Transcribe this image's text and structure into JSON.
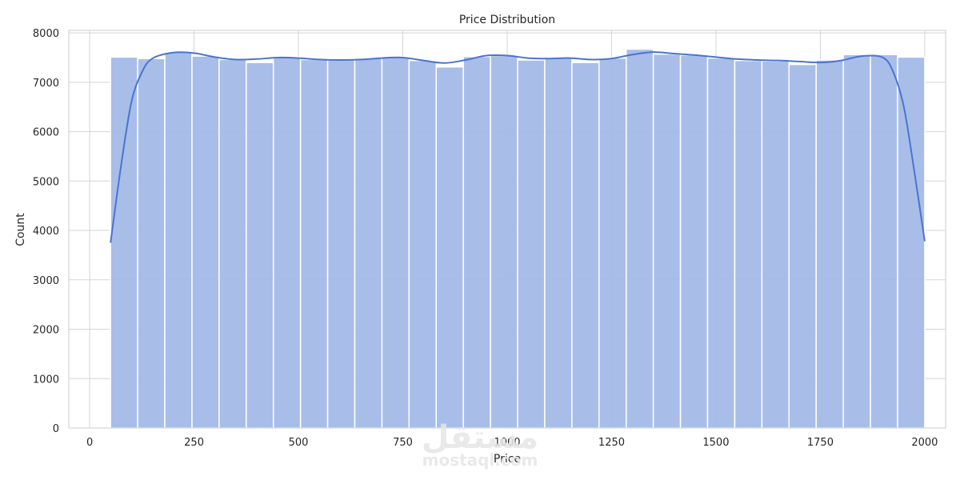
{
  "chart_data": {
    "type": "bar",
    "subtype": "histogram-with-kde",
    "title": "Price Distribution",
    "xlabel": "Price",
    "ylabel": "Count",
    "xlim": [
      -50,
      2050
    ],
    "ylim": [
      0,
      8050
    ],
    "x_ticks": [
      0,
      250,
      500,
      750,
      1000,
      1250,
      1500,
      1750,
      2000
    ],
    "y_ticks": [
      0,
      1000,
      2000,
      3000,
      4000,
      5000,
      6000,
      7000,
      8000
    ],
    "grid": true,
    "bar_color": "#a3bbe7",
    "bar_edge_color": "#ffffff",
    "kde_color": "#4a74d0",
    "bins": [
      {
        "start": 50,
        "end": 115,
        "count": 7510
      },
      {
        "start": 115,
        "end": 180,
        "count": 7480
      },
      {
        "start": 180,
        "end": 245,
        "count": 7610
      },
      {
        "start": 245,
        "end": 310,
        "count": 7530
      },
      {
        "start": 310,
        "end": 375,
        "count": 7460
      },
      {
        "start": 375,
        "end": 440,
        "count": 7400
      },
      {
        "start": 440,
        "end": 505,
        "count": 7510
      },
      {
        "start": 505,
        "end": 570,
        "count": 7460
      },
      {
        "start": 570,
        "end": 635,
        "count": 7450
      },
      {
        "start": 635,
        "end": 700,
        "count": 7480
      },
      {
        "start": 700,
        "end": 765,
        "count": 7510
      },
      {
        "start": 765,
        "end": 830,
        "count": 7440
      },
      {
        "start": 830,
        "end": 895,
        "count": 7310
      },
      {
        "start": 895,
        "end": 960,
        "count": 7520
      },
      {
        "start": 960,
        "end": 1025,
        "count": 7540
      },
      {
        "start": 1025,
        "end": 1090,
        "count": 7450
      },
      {
        "start": 1090,
        "end": 1155,
        "count": 7490
      },
      {
        "start": 1155,
        "end": 1220,
        "count": 7400
      },
      {
        "start": 1220,
        "end": 1285,
        "count": 7490
      },
      {
        "start": 1285,
        "end": 1350,
        "count": 7670
      },
      {
        "start": 1350,
        "end": 1415,
        "count": 7570
      },
      {
        "start": 1415,
        "end": 1480,
        "count": 7550
      },
      {
        "start": 1480,
        "end": 1545,
        "count": 7490
      },
      {
        "start": 1545,
        "end": 1610,
        "count": 7440
      },
      {
        "start": 1610,
        "end": 1675,
        "count": 7430
      },
      {
        "start": 1675,
        "end": 1740,
        "count": 7360
      },
      {
        "start": 1740,
        "end": 1805,
        "count": 7450
      },
      {
        "start": 1805,
        "end": 1870,
        "count": 7560
      },
      {
        "start": 1870,
        "end": 1935,
        "count": 7560
      },
      {
        "start": 1935,
        "end": 2000,
        "count": 7510
      }
    ],
    "kde": {
      "x": [
        50,
        75,
        100,
        125,
        150,
        200,
        250,
        300,
        350,
        400,
        450,
        500,
        550,
        600,
        650,
        700,
        750,
        800,
        850,
        900,
        950,
        1000,
        1050,
        1100,
        1150,
        1200,
        1250,
        1300,
        1350,
        1400,
        1450,
        1500,
        1550,
        1600,
        1650,
        1700,
        1750,
        1800,
        1850,
        1900,
        1925,
        1950,
        1975,
        2000
      ],
      "y": [
        3750,
        5300,
        6600,
        7200,
        7480,
        7600,
        7590,
        7510,
        7460,
        7470,
        7500,
        7490,
        7460,
        7450,
        7460,
        7490,
        7500,
        7440,
        7390,
        7450,
        7540,
        7540,
        7490,
        7480,
        7490,
        7460,
        7480,
        7560,
        7610,
        7580,
        7550,
        7510,
        7470,
        7450,
        7440,
        7420,
        7400,
        7440,
        7530,
        7500,
        7200,
        6500,
        5200,
        3780
      ]
    }
  },
  "watermark": {
    "text": "mostaql.com",
    "glyph": "مستقل"
  }
}
